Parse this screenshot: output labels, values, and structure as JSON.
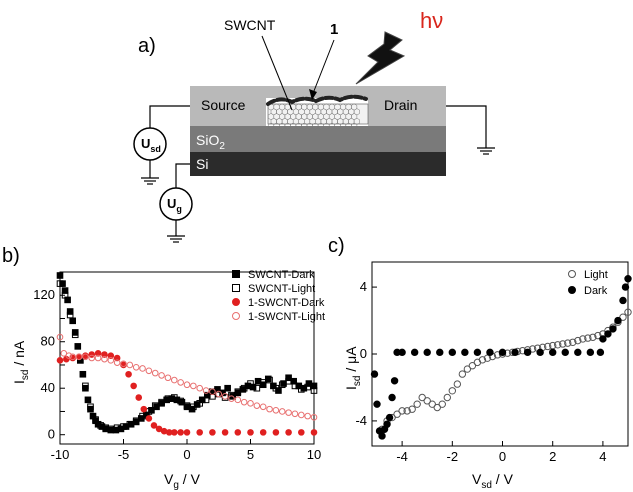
{
  "panels": {
    "a": {
      "label": "a)",
      "layers": {
        "source": "Source",
        "drain": "Drain",
        "oxide_main": "SiO",
        "oxide_sub": "2",
        "substrate": "Si"
      },
      "annotations": {
        "tube": "SWCNT",
        "molecule": "1",
        "light": "hν"
      },
      "sources": {
        "usd_main": "U",
        "usd_sub": "sd",
        "ug_main": "U",
        "ug_sub": "g"
      },
      "colors": {
        "light": "#d9261c",
        "contact": "#b9b9b9",
        "oxide": "#7a7a7a",
        "silicon": "#2b2b2b"
      }
    },
    "b": {
      "label": "b)",
      "ylabel_main": "I",
      "ylabel_sub": "sd",
      "ylabel_unit": " / nA",
      "xlabel_main": "V",
      "xlabel_sub": "g",
      "xlabel_unit": " / V"
    },
    "c": {
      "label": "c)",
      "ylabel_main": "I",
      "ylabel_sub": "sd",
      "ylabel_unit": " / μA",
      "xlabel_main": "V",
      "xlabel_sub": "sd",
      "xlabel_unit": " / V"
    }
  },
  "chart_data": [
    {
      "type": "scatter",
      "panel": "b",
      "xlim": [
        -10,
        10
      ],
      "ylim": [
        -8,
        140
      ],
      "xticks": [
        -10,
        -5,
        0,
        5,
        10
      ],
      "yticks": [
        0,
        20,
        40,
        60,
        80,
        100,
        120
      ],
      "yticklabels": [
        "0",
        "",
        "40",
        "",
        "80",
        "",
        "120"
      ],
      "legend_position": "top-right",
      "series": [
        {
          "name": "SWCNT-Dark",
          "marker": "square-filled",
          "color": "#000000",
          "points": [
            [
              -10,
              137
            ],
            [
              -9.8,
              130
            ],
            [
              -9.6,
              124
            ],
            [
              -9.4,
              116
            ],
            [
              -9.2,
              106
            ],
            [
              -9,
              98
            ],
            [
              -8.8,
              88
            ],
            [
              -8.6,
              76
            ],
            [
              -8.4,
              64
            ],
            [
              -8.2,
              52
            ],
            [
              -8,
              40
            ],
            [
              -7.8,
              30
            ],
            [
              -7.6,
              22
            ],
            [
              -7.4,
              16
            ],
            [
              -7.2,
              12
            ],
            [
              -7,
              9
            ],
            [
              -6.7,
              7
            ],
            [
              -6.4,
              5
            ],
            [
              -6,
              4
            ],
            [
              -5.6,
              4
            ],
            [
              -5.2,
              5
            ],
            [
              -4.8,
              7
            ],
            [
              -4.4,
              9
            ],
            [
              -4,
              11
            ],
            [
              -3.6,
              14
            ],
            [
              -3.2,
              17
            ],
            [
              -2.8,
              21
            ],
            [
              -2.4,
              24
            ],
            [
              -2,
              27
            ],
            [
              -1.6,
              30
            ],
            [
              -1.2,
              31
            ],
            [
              -0.8,
              30
            ],
            [
              -0.4,
              28
            ],
            [
              0,
              24
            ],
            [
              0.4,
              22
            ],
            [
              0.8,
              26
            ],
            [
              1.2,
              30
            ],
            [
              1.6,
              34
            ],
            [
              2,
              37
            ],
            [
              2.4,
              39
            ],
            [
              2.8,
              36
            ],
            [
              3.2,
              40
            ],
            [
              3.6,
              33
            ],
            [
              4,
              36
            ],
            [
              4.4,
              39
            ],
            [
              4.8,
              42
            ],
            [
              5.2,
              41
            ],
            [
              5.6,
              46
            ],
            [
              6,
              43
            ],
            [
              6.4,
              48
            ],
            [
              6.8,
              42
            ],
            [
              7.2,
              38
            ],
            [
              7.6,
              44
            ],
            [
              8,
              49
            ],
            [
              8.4,
              46
            ],
            [
              8.8,
              42
            ],
            [
              9.2,
              40
            ],
            [
              9.6,
              44
            ],
            [
              10,
              42
            ]
          ]
        },
        {
          "name": "SWCNT-Light",
          "marker": "square-open",
          "color": "#000000",
          "points": [
            [
              -10,
              130
            ],
            [
              -9.6,
              120
            ],
            [
              -9.2,
              103
            ],
            [
              -8.8,
              86
            ],
            [
              -8.4,
              64
            ],
            [
              -8,
              42
            ],
            [
              -7.6,
              24
            ],
            [
              -7.2,
              13
            ],
            [
              -6.8,
              8
            ],
            [
              -6.4,
              6
            ],
            [
              -6,
              5
            ],
            [
              -5.5,
              6
            ],
            [
              -5,
              7
            ],
            [
              -4.5,
              9
            ],
            [
              -4,
              12
            ],
            [
              -3.5,
              16
            ],
            [
              -3,
              20
            ],
            [
              -2.5,
              25
            ],
            [
              -2,
              28
            ],
            [
              -1.5,
              31
            ],
            [
              -1,
              32
            ],
            [
              -0.5,
              29
            ],
            [
              0,
              25
            ],
            [
              0.5,
              24
            ],
            [
              1,
              27
            ],
            [
              1.5,
              30
            ],
            [
              2,
              33
            ],
            [
              2.5,
              35
            ],
            [
              3,
              32
            ],
            [
              3.5,
              34
            ],
            [
              4,
              37
            ],
            [
              4.5,
              40
            ],
            [
              5,
              44
            ],
            [
              5.5,
              40
            ],
            [
              6,
              45
            ],
            [
              6.5,
              47
            ],
            [
              7,
              40
            ],
            [
              7.5,
              43
            ],
            [
              8,
              46
            ],
            [
              8.5,
              42
            ],
            [
              9,
              39
            ],
            [
              9.5,
              41
            ],
            [
              10,
              38
            ]
          ]
        },
        {
          "name": "1-SWCNT-Dark",
          "marker": "circle-filled",
          "color": "#e02020",
          "points": [
            [
              -10,
              64
            ],
            [
              -9.5,
              65
            ],
            [
              -9,
              66
            ],
            [
              -8.5,
              67
            ],
            [
              -8,
              68
            ],
            [
              -7.5,
              69
            ],
            [
              -7,
              70
            ],
            [
              -6.5,
              69
            ],
            [
              -6,
              68
            ],
            [
              -5.5,
              66
            ],
            [
              -5,
              60
            ],
            [
              -4.6,
              52
            ],
            [
              -4.2,
              42
            ],
            [
              -3.8,
              32
            ],
            [
              -3.4,
              22
            ],
            [
              -3,
              14
            ],
            [
              -2.6,
              8
            ],
            [
              -2.2,
              5
            ],
            [
              -1.8,
              3
            ],
            [
              -1.4,
              2
            ],
            [
              -1,
              2
            ],
            [
              -0.5,
              2
            ],
            [
              0,
              2
            ],
            [
              1,
              2
            ],
            [
              2,
              2
            ],
            [
              3,
              2
            ],
            [
              4,
              2
            ],
            [
              5,
              2
            ],
            [
              6,
              2
            ],
            [
              7,
              2
            ],
            [
              8,
              2
            ],
            [
              9,
              2
            ],
            [
              10,
              2
            ]
          ]
        },
        {
          "name": "1-SWCNT-Light",
          "marker": "circle-open",
          "color": "#e87070",
          "points": [
            [
              -10,
              84
            ],
            [
              -9.7,
              70
            ],
            [
              -9.3,
              68
            ],
            [
              -9,
              67
            ],
            [
              -8.5,
              67
            ],
            [
              -8,
              67
            ],
            [
              -7.5,
              66
            ],
            [
              -7,
              66
            ],
            [
              -6.5,
              65
            ],
            [
              -6,
              64
            ],
            [
              -5.5,
              62
            ],
            [
              -5,
              61
            ],
            [
              -4.5,
              60
            ],
            [
              -4,
              58
            ],
            [
              -3.5,
              57
            ],
            [
              -3,
              55
            ],
            [
              -2.5,
              53
            ],
            [
              -2,
              51
            ],
            [
              -1.5,
              49
            ],
            [
              -1,
              47
            ],
            [
              -0.5,
              45
            ],
            [
              0,
              43
            ],
            [
              0.5,
              42
            ],
            [
              1,
              40
            ],
            [
              1.5,
              38
            ],
            [
              2,
              37
            ],
            [
              2.5,
              35
            ],
            [
              3,
              33
            ],
            [
              3.5,
              31
            ],
            [
              4,
              30
            ],
            [
              4.5,
              28
            ],
            [
              5,
              27
            ],
            [
              5.5,
              25
            ],
            [
              6,
              24
            ],
            [
              6.5,
              22
            ],
            [
              7,
              21
            ],
            [
              7.5,
              20
            ],
            [
              8,
              19
            ],
            [
              8.5,
              18
            ],
            [
              9,
              17
            ],
            [
              9.5,
              16
            ],
            [
              10,
              15
            ]
          ]
        }
      ]
    },
    {
      "type": "scatter",
      "panel": "c",
      "xlim": [
        -5.2,
        5
      ],
      "ylim": [
        -5.5,
        5.5
      ],
      "xticks": [
        -4,
        -2,
        0,
        2,
        4
      ],
      "yticks": [
        -4,
        0,
        4
      ],
      "legend_position": "top-right",
      "series": [
        {
          "name": "Light",
          "marker": "circle-open",
          "color": "#555555",
          "points": [
            [
              -4.8,
              -4.5
            ],
            [
              -4.6,
              -4.0
            ],
            [
              -4.4,
              -3.8
            ],
            [
              -4.2,
              -3.6
            ],
            [
              -4.0,
              -3.4
            ],
            [
              -3.8,
              -3.4
            ],
            [
              -3.6,
              -3.3
            ],
            [
              -3.4,
              -3.0
            ],
            [
              -3.2,
              -2.6
            ],
            [
              -3.0,
              -2.8
            ],
            [
              -2.8,
              -3.0
            ],
            [
              -2.6,
              -3.2
            ],
            [
              -2.4,
              -3.0
            ],
            [
              -2.2,
              -2.6
            ],
            [
              -2.0,
              -2.2
            ],
            [
              -1.8,
              -1.8
            ],
            [
              -1.6,
              -1.2
            ],
            [
              -1.4,
              -0.9
            ],
            [
              -1.2,
              -0.7
            ],
            [
              -1.0,
              -0.5
            ],
            [
              -0.8,
              -0.35
            ],
            [
              -0.6,
              -0.25
            ],
            [
              -0.4,
              -0.15
            ],
            [
              -0.2,
              -0.05
            ],
            [
              0,
              0
            ],
            [
              0.2,
              0.05
            ],
            [
              0.4,
              0.1
            ],
            [
              0.6,
              0.15
            ],
            [
              0.8,
              0.2
            ],
            [
              1.0,
              0.25
            ],
            [
              1.2,
              0.3
            ],
            [
              1.4,
              0.35
            ],
            [
              1.6,
              0.4
            ],
            [
              1.8,
              0.45
            ],
            [
              2.0,
              0.5
            ],
            [
              2.2,
              0.55
            ],
            [
              2.4,
              0.6
            ],
            [
              2.6,
              0.65
            ],
            [
              2.8,
              0.7
            ],
            [
              3.0,
              0.8
            ],
            [
              3.2,
              0.9
            ],
            [
              3.4,
              0.95
            ],
            [
              3.6,
              1.0
            ],
            [
              3.8,
              1.1
            ],
            [
              4.0,
              1.2
            ],
            [
              4.2,
              1.4
            ],
            [
              4.4,
              1.6
            ],
            [
              4.6,
              1.9
            ],
            [
              4.8,
              2.2
            ],
            [
              5.0,
              2.5
            ]
          ]
        },
        {
          "name": "Dark",
          "marker": "circle-filled",
          "color": "#000000",
          "points": [
            [
              -5.1,
              -1.2
            ],
            [
              -5.0,
              -3.0
            ],
            [
              -4.9,
              -4.6
            ],
            [
              -4.8,
              -4.9
            ],
            [
              -4.7,
              -4.5
            ],
            [
              -4.6,
              -4.2
            ],
            [
              -4.5,
              -3.8
            ],
            [
              -4.4,
              -2.6
            ],
            [
              -4.3,
              -1.6
            ],
            [
              -4.2,
              0.1
            ],
            [
              -4.0,
              0.1
            ],
            [
              -3.5,
              0.1
            ],
            [
              -3.0,
              0.1
            ],
            [
              -2.5,
              0.1
            ],
            [
              -2.0,
              0.1
            ],
            [
              -1.5,
              0.1
            ],
            [
              -1.0,
              0.1
            ],
            [
              -0.5,
              0.1
            ],
            [
              0,
              0.1
            ],
            [
              0.5,
              0.1
            ],
            [
              1.0,
              0.1
            ],
            [
              1.5,
              0.1
            ],
            [
              2.0,
              0.1
            ],
            [
              2.5,
              0.1
            ],
            [
              3.0,
              0.1
            ],
            [
              3.5,
              0.1
            ],
            [
              3.9,
              0.1
            ],
            [
              4.0,
              0.9
            ],
            [
              4.2,
              1.2
            ],
            [
              4.4,
              1.5
            ],
            [
              4.6,
              2.0
            ],
            [
              4.8,
              3.2
            ],
            [
              4.9,
              4.0
            ],
            [
              5.0,
              4.5
            ]
          ]
        }
      ]
    }
  ]
}
